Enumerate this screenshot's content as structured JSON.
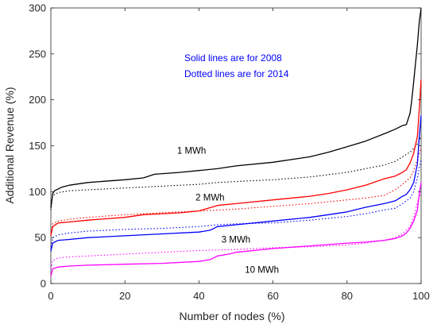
{
  "chart_data": {
    "type": "line",
    "title": "",
    "xlabel": "Number of nodes (%)",
    "ylabel": "Additional Revenue (%)",
    "xlim": [
      0,
      100
    ],
    "ylim": [
      0,
      300
    ],
    "xticks": [
      "0",
      "20",
      "40",
      "60",
      "80",
      "100"
    ],
    "yticks": [
      "0",
      "50",
      "100",
      "150",
      "200",
      "250",
      "300"
    ],
    "grid": false,
    "notes": [
      "Solid lines are for 2008",
      "Dotted lines are for 2014"
    ],
    "note_color": "#0000ff",
    "series": [
      {
        "name": "1 MWh",
        "year": "2008",
        "style": "solid",
        "color": "#000000",
        "points": [
          [
            0,
            82
          ],
          [
            0.5,
            98
          ],
          [
            1,
            101
          ],
          [
            3,
            105
          ],
          [
            5,
            107
          ],
          [
            10,
            110
          ],
          [
            20,
            113
          ],
          [
            25,
            115
          ],
          [
            28,
            119
          ],
          [
            35,
            121
          ],
          [
            40,
            123
          ],
          [
            45,
            125
          ],
          [
            50,
            128
          ],
          [
            60,
            132
          ],
          [
            70,
            138
          ],
          [
            75,
            143
          ],
          [
            80,
            149
          ],
          [
            85,
            155
          ],
          [
            90,
            163
          ],
          [
            93,
            168
          ],
          [
            95,
            172
          ],
          [
            96,
            173
          ],
          [
            97,
            185
          ],
          [
            97.5,
            200
          ],
          [
            98,
            220
          ],
          [
            98.5,
            240
          ],
          [
            99,
            260
          ],
          [
            99.5,
            285
          ],
          [
            100,
            300
          ]
        ]
      },
      {
        "name": "1 MWh",
        "year": "2014",
        "style": "dotted",
        "color": "#000000",
        "points": [
          [
            0,
            80
          ],
          [
            0.5,
            96
          ],
          [
            2,
            99
          ],
          [
            5,
            101
          ],
          [
            10,
            102
          ],
          [
            20,
            104
          ],
          [
            30,
            106
          ],
          [
            40,
            108
          ],
          [
            45,
            110
          ],
          [
            50,
            111
          ],
          [
            60,
            113
          ],
          [
            70,
            116
          ],
          [
            80,
            121
          ],
          [
            85,
            125
          ],
          [
            90,
            129
          ],
          [
            93,
            133
          ],
          [
            95,
            138
          ],
          [
            97,
            143
          ],
          [
            98,
            147
          ],
          [
            99,
            152
          ],
          [
            100,
            160
          ]
        ]
      },
      {
        "name": "2 MWh",
        "year": "2008",
        "style": "solid",
        "color": "#ff0000",
        "points": [
          [
            0,
            52
          ],
          [
            0.5,
            62
          ],
          [
            2,
            66
          ],
          [
            5,
            67
          ],
          [
            10,
            69
          ],
          [
            20,
            72
          ],
          [
            25,
            75
          ],
          [
            30,
            76
          ],
          [
            35,
            77
          ],
          [
            40,
            79
          ],
          [
            45,
            85
          ],
          [
            50,
            87
          ],
          [
            60,
            91
          ],
          [
            70,
            95
          ],
          [
            75,
            98
          ],
          [
            80,
            102
          ],
          [
            85,
            107
          ],
          [
            90,
            114
          ],
          [
            93,
            117
          ],
          [
            95,
            121
          ],
          [
            96,
            124
          ],
          [
            97,
            131
          ],
          [
            98,
            142
          ],
          [
            99,
            160
          ],
          [
            99.5,
            190
          ],
          [
            100,
            222
          ]
        ]
      },
      {
        "name": "2 MWh",
        "year": "2014",
        "style": "dotted",
        "color": "#ff0000",
        "points": [
          [
            0,
            54
          ],
          [
            0.5,
            65
          ],
          [
            2,
            68
          ],
          [
            5,
            70
          ],
          [
            10,
            72
          ],
          [
            20,
            75
          ],
          [
            30,
            77
          ],
          [
            40,
            79
          ],
          [
            45,
            80
          ],
          [
            50,
            81
          ],
          [
            60,
            84
          ],
          [
            70,
            87
          ],
          [
            80,
            91
          ],
          [
            85,
            93
          ],
          [
            90,
            96
          ],
          [
            93,
            102
          ],
          [
            95,
            108
          ],
          [
            97,
            115
          ],
          [
            98,
            123
          ],
          [
            99,
            135
          ],
          [
            100,
            148
          ]
        ]
      },
      {
        "name": "3 MWh",
        "year": "2008",
        "style": "solid",
        "color": "#0000ff",
        "points": [
          [
            0,
            35
          ],
          [
            0.5,
            44
          ],
          [
            2,
            47
          ],
          [
            5,
            48
          ],
          [
            10,
            50
          ],
          [
            20,
            52
          ],
          [
            30,
            54
          ],
          [
            40,
            56
          ],
          [
            43,
            58
          ],
          [
            45,
            62
          ],
          [
            50,
            64
          ],
          [
            60,
            68
          ],
          [
            70,
            72
          ],
          [
            75,
            75
          ],
          [
            80,
            78
          ],
          [
            85,
            83
          ],
          [
            90,
            87
          ],
          [
            93,
            90
          ],
          [
            95,
            95
          ],
          [
            96,
            97
          ],
          [
            97,
            102
          ],
          [
            98,
            110
          ],
          [
            99,
            130
          ],
          [
            99.5,
            160
          ],
          [
            100,
            183
          ]
        ]
      },
      {
        "name": "3 MWh",
        "year": "2014",
        "style": "dotted",
        "color": "#0000ff",
        "points": [
          [
            0,
            40
          ],
          [
            0.5,
            50
          ],
          [
            2,
            53
          ],
          [
            5,
            55
          ],
          [
            10,
            57
          ],
          [
            20,
            59
          ],
          [
            30,
            60
          ],
          [
            40,
            62
          ],
          [
            45,
            64
          ],
          [
            50,
            65
          ],
          [
            60,
            66
          ],
          [
            70,
            69
          ],
          [
            80,
            73
          ],
          [
            85,
            76
          ],
          [
            90,
            80
          ],
          [
            93,
            82
          ],
          [
            95,
            87
          ],
          [
            97,
            93
          ],
          [
            98,
            100
          ],
          [
            99,
            115
          ],
          [
            100,
            135
          ]
        ]
      },
      {
        "name": "10 MWh",
        "year": "2008",
        "style": "solid",
        "color": "#ff00ff",
        "points": [
          [
            0,
            8
          ],
          [
            0.5,
            16
          ],
          [
            2,
            18
          ],
          [
            5,
            19
          ],
          [
            10,
            20
          ],
          [
            20,
            21
          ],
          [
            30,
            22
          ],
          [
            40,
            24
          ],
          [
            43,
            26
          ],
          [
            45,
            30
          ],
          [
            48,
            32
          ],
          [
            50,
            34
          ],
          [
            60,
            38
          ],
          [
            70,
            41
          ],
          [
            80,
            44
          ],
          [
            85,
            45
          ],
          [
            90,
            47
          ],
          [
            93,
            49
          ],
          [
            95,
            52
          ],
          [
            96,
            55
          ],
          [
            97,
            60
          ],
          [
            98,
            68
          ],
          [
            99,
            80
          ],
          [
            99.5,
            98
          ],
          [
            100,
            110
          ]
        ]
      },
      {
        "name": "10 MWh",
        "year": "2014",
        "style": "dotted",
        "color": "#ff00ff",
        "points": [
          [
            0,
            16
          ],
          [
            0.5,
            25
          ],
          [
            2,
            28
          ],
          [
            5,
            29
          ],
          [
            10,
            30
          ],
          [
            20,
            32
          ],
          [
            30,
            34
          ],
          [
            40,
            36
          ],
          [
            50,
            37
          ],
          [
            60,
            39
          ],
          [
            70,
            40
          ],
          [
            80,
            42
          ],
          [
            85,
            44
          ],
          [
            90,
            47
          ],
          [
            93,
            50
          ],
          [
            95,
            54
          ],
          [
            97,
            62
          ],
          [
            98,
            72
          ],
          [
            99,
            88
          ],
          [
            100,
            100
          ]
        ]
      }
    ],
    "series_labels": [
      {
        "text": "1 MWh",
        "x": 38,
        "y": 145
      },
      {
        "text": "2 MWh",
        "x": 43,
        "y": 94
      },
      {
        "text": "3 MWh",
        "x": 50,
        "y": 48
      },
      {
        "text": "10 MWh",
        "x": 57,
        "y": 15
      }
    ]
  }
}
